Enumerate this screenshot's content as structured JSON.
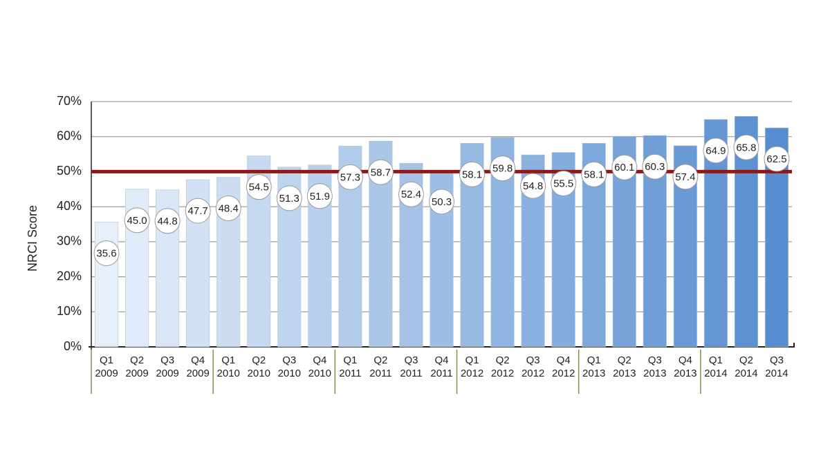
{
  "chart_data": {
    "type": "bar",
    "y_label": "NRCI Score",
    "categories": [
      [
        "Q1",
        "2009"
      ],
      [
        "Q2",
        "2009"
      ],
      [
        "Q3",
        "2009"
      ],
      [
        "Q4",
        "2009"
      ],
      [
        "Q1",
        "2010"
      ],
      [
        "Q2",
        "2010"
      ],
      [
        "Q3",
        "2010"
      ],
      [
        "Q4",
        "2010"
      ],
      [
        "Q1",
        "2011"
      ],
      [
        "Q2",
        "2011"
      ],
      [
        "Q3",
        "2011"
      ],
      [
        "Q4",
        "2011"
      ],
      [
        "Q1",
        "2012"
      ],
      [
        "Q2",
        "2012"
      ],
      [
        "Q3",
        "2012"
      ],
      [
        "Q4",
        "2012"
      ],
      [
        "Q1",
        "2013"
      ],
      [
        "Q2",
        "2013"
      ],
      [
        "Q3",
        "2013"
      ],
      [
        "Q4",
        "2013"
      ],
      [
        "Q1",
        "2014"
      ],
      [
        "Q2",
        "2014"
      ],
      [
        "Q3",
        "2014"
      ]
    ],
    "values": [
      35.6,
      45.0,
      44.8,
      47.7,
      48.4,
      54.5,
      51.3,
      51.9,
      57.3,
      58.7,
      52.4,
      50.3,
      58.1,
      59.8,
      54.8,
      55.5,
      58.1,
      60.1,
      60.3,
      57.4,
      64.9,
      65.8,
      62.5
    ],
    "value_labels": [
      "35.6",
      "45.0",
      "44.8",
      "47.7",
      "48.4",
      "54.5",
      "51.3",
      "51.9",
      "57.3",
      "58.7",
      "52.4",
      "50.3",
      "58.1",
      "59.8",
      "54.8",
      "55.5",
      "58.1",
      "60.1",
      "60.3",
      "57.4",
      "64.9",
      "65.8",
      "62.5"
    ],
    "color_gradient": [
      "#e6effa",
      "#568dcf"
    ],
    "ylim": [
      0,
      70
    ],
    "yticks": [
      {
        "value": 0,
        "label": "0%"
      },
      {
        "value": 10,
        "label": "10%"
      },
      {
        "value": 20,
        "label": "20%"
      },
      {
        "value": 30,
        "label": "30%"
      },
      {
        "value": 40,
        "label": "40%"
      },
      {
        "value": 50,
        "label": "50%"
      },
      {
        "value": 60,
        "label": "60%"
      },
      {
        "value": 70,
        "label": "70%"
      }
    ],
    "grid": true,
    "reference_line": {
      "value": 50,
      "color": "#8b1a1a"
    }
  }
}
